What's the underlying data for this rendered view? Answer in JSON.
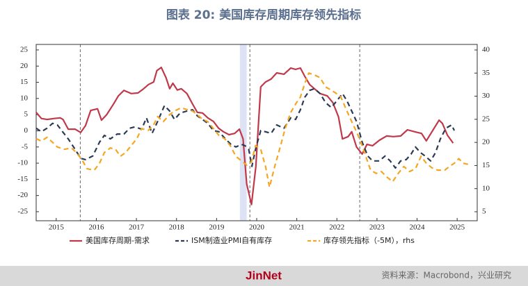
{
  "chart_data": {
    "type": "line",
    "title": "图表 20: 美国库存周期库存领先指标",
    "xlim": [
      2015,
      2026
    ],
    "xticks": [
      {
        "value": 2015.5,
        "label": "2015"
      },
      {
        "value": 2016.5,
        "label": "2016"
      },
      {
        "value": 2017.5,
        "label": "2017"
      },
      {
        "value": 2018.5,
        "label": "2018"
      },
      {
        "value": 2019.5,
        "label": "2019"
      },
      {
        "value": 2020.5,
        "label": "2020"
      },
      {
        "value": 2021.5,
        "label": "2021"
      },
      {
        "value": 2022.5,
        "label": "2022"
      },
      {
        "value": 2023.5,
        "label": "2023"
      },
      {
        "value": 2024.5,
        "label": "2024"
      },
      {
        "value": 2025.5,
        "label": "2025"
      }
    ],
    "ylim": [
      -27.8,
      26.7
    ],
    "yticks": [
      -25,
      -20,
      -15,
      -10,
      -5,
      0,
      5,
      10,
      15,
      20,
      25
    ],
    "y2lim": [
      3.05,
      41.2
    ],
    "y2ticks": [
      5,
      10,
      15,
      20,
      25,
      30,
      35,
      40
    ],
    "shaded_x": [
      2020.08,
      2020.25
    ],
    "reference_x": [
      2016.1,
      2020.33,
      2023.07
    ],
    "series": [
      {
        "name": "美国库存周期-需求",
        "color": "#c0394b",
        "dash": "none",
        "x": [
          2015.0,
          2015.13,
          2015.27,
          2015.45,
          2015.6,
          2015.67,
          2015.8,
          2015.97,
          2016.11,
          2016.23,
          2016.36,
          2016.53,
          2016.63,
          2016.76,
          2016.93,
          2017.05,
          2017.19,
          2017.37,
          2017.54,
          2017.66,
          2017.8,
          2017.93,
          2018.01,
          2018.12,
          2018.24,
          2018.33,
          2018.41,
          2018.52,
          2018.62,
          2018.76,
          2018.9,
          2019.02,
          2019.15,
          2019.28,
          2019.42,
          2019.55,
          2019.67,
          2019.81,
          2019.95,
          2020.07,
          2020.16,
          2020.25,
          2020.37,
          2020.48,
          2020.6,
          2020.72,
          2020.86,
          2021.0,
          2021.18,
          2021.35,
          2021.47,
          2021.59,
          2021.7,
          2021.82,
          2021.94,
          2022.08,
          2022.26,
          2022.4,
          2022.54,
          2022.64,
          2022.78,
          2022.87,
          2022.99,
          2023.13,
          2023.25,
          2023.39,
          2023.56,
          2023.74,
          2023.91,
          2024.09,
          2024.26,
          2024.44,
          2024.61,
          2024.73,
          2024.87,
          2025.05,
          2025.13,
          2025.26,
          2025.4
        ],
        "values": [
          5.7,
          3.8,
          3.5,
          3.8,
          4,
          3.5,
          0.5,
          0.5,
          -0.5,
          1.6,
          6.3,
          6.8,
          3.3,
          5,
          8.3,
          10.8,
          12.5,
          11.5,
          11.7,
          12.8,
          14.3,
          15.1,
          18.6,
          19.6,
          16.4,
          13,
          14.7,
          12.6,
          13,
          11.5,
          8.3,
          5.7,
          5.5,
          4,
          2.9,
          0.8,
          -0.3,
          -1.2,
          -0.8,
          0.5,
          -2.5,
          -16.4,
          -22.8,
          -11,
          13.6,
          15.1,
          16,
          17.9,
          17.5,
          19.4,
          19,
          19.4,
          16.8,
          14.3,
          13,
          11.5,
          10.8,
          8.7,
          4.3,
          -2.5,
          -1.8,
          -0.3,
          -5,
          -7.2,
          -4.2,
          -4.6,
          -2.9,
          -1.6,
          -1.8,
          -1.6,
          0.3,
          -0.3,
          -0.8,
          -3.1,
          -0.3,
          3.3,
          2.3,
          -1.4,
          -3.8
        ]
      },
      {
        "name": "ISM制造业PMI自有库存",
        "color": "#2b3a55",
        "dash": "7 5",
        "x": [
          2015.0,
          2015.13,
          2015.27,
          2015.41,
          2015.53,
          2015.66,
          2015.8,
          2015.97,
          2016.11,
          2016.23,
          2016.41,
          2016.58,
          2016.7,
          2016.85,
          2017.02,
          2017.19,
          2017.33,
          2017.46,
          2017.63,
          2017.75,
          2017.89,
          2018.03,
          2018.2,
          2018.33,
          2018.45,
          2018.59,
          2018.76,
          2018.9,
          2019.02,
          2019.15,
          2019.28,
          2019.42,
          2019.56,
          2019.72,
          2019.86,
          2019.98,
          2020.12,
          2020.21,
          2020.3,
          2020.38,
          2020.47,
          2020.6,
          2020.72,
          2020.86,
          2021.0,
          2021.18,
          2021.35,
          2021.47,
          2021.59,
          2021.7,
          2021.82,
          2021.94,
          2022.08,
          2022.22,
          2022.36,
          2022.5,
          2022.64,
          2022.75,
          2022.87,
          2022.99,
          2023.13,
          2023.27,
          2023.39,
          2023.56,
          2023.7,
          2023.83,
          2023.96,
          2024.09,
          2024.23,
          2024.35,
          2024.46,
          2024.58,
          2024.7,
          2024.84,
          2024.96,
          2025.08,
          2025.22,
          2025.36,
          2025.43
        ],
        "values": [
          0.8,
          -0.3,
          0.8,
          2.3,
          1.8,
          -0.3,
          -2.5,
          -5.7,
          -8.5,
          -8.9,
          -7.8,
          -3.5,
          -1.4,
          -2.5,
          -1,
          -1,
          0.8,
          1.2,
          0.5,
          4,
          -0.8,
          2.9,
          7.8,
          6.1,
          3.5,
          5.5,
          6.1,
          6.5,
          4.6,
          3.5,
          2.3,
          0.1,
          -0.3,
          -2.5,
          -4.2,
          -5,
          -4.2,
          -4.6,
          -5.7,
          -11,
          -5.7,
          0.1,
          -0.3,
          -0.8,
          1.8,
          0.8,
          4,
          3.5,
          6.5,
          10.4,
          12.5,
          13,
          11.5,
          8.7,
          7.2,
          9.3,
          11.5,
          9.3,
          6.1,
          2.9,
          -3.5,
          -7.8,
          -9.3,
          -9.3,
          -7.8,
          -9.3,
          -11.5,
          -9.3,
          -8.9,
          -7.2,
          -5,
          -6.7,
          -7.8,
          -9.3,
          -6.7,
          -2.5,
          0.8,
          1.8,
          0.1
        ]
      },
      {
        "name": "库存领先指标（-5M），rhs",
        "color": "#f5a623",
        "dash": "7 5",
        "axis": "y2",
        "x": [
          2015.0,
          2015.13,
          2015.27,
          2015.41,
          2015.53,
          2015.71,
          2015.88,
          2016.0,
          2016.14,
          2016.27,
          2016.45,
          2016.58,
          2016.7,
          2016.85,
          2016.98,
          2017.1,
          2017.23,
          2017.37,
          2017.51,
          2017.63,
          2017.8,
          2017.93,
          2018.03,
          2018.17,
          2018.33,
          2018.45,
          2018.62,
          2018.76,
          2018.9,
          2019.02,
          2019.15,
          2019.28,
          2019.42,
          2019.56,
          2019.7,
          2019.84,
          2019.98,
          2020.12,
          2020.25,
          2020.37,
          2020.47,
          2020.6,
          2020.72,
          2020.82,
          2020.95,
          2021.07,
          2021.21,
          2021.35,
          2021.47,
          2021.59,
          2021.7,
          2021.8,
          2021.94,
          2022.08,
          2022.22,
          2022.36,
          2022.5,
          2022.6,
          2022.75,
          2022.87,
          2022.99,
          2023.1,
          2023.22,
          2023.34,
          2023.48,
          2023.61,
          2023.75,
          2023.89,
          2024.03,
          2024.17,
          2024.31,
          2024.46,
          2024.6,
          2024.73,
          2024.87,
          2025.01,
          2025.19,
          2025.31,
          2025.43,
          2025.54,
          2025.64,
          2025.75,
          2025.84
        ],
        "values": [
          20.8,
          20.3,
          21.1,
          20,
          19,
          18.5,
          18.8,
          17.8,
          16.3,
          14.3,
          14,
          15.5,
          17.8,
          18.8,
          18.5,
          17,
          17.8,
          19.3,
          20.8,
          23,
          22.6,
          23.8,
          25.6,
          24.5,
          26,
          26.8,
          27.5,
          27.1,
          26.8,
          26,
          25,
          24.5,
          23,
          21.5,
          20.8,
          19.3,
          17,
          16,
          15.1,
          15.8,
          19.3,
          18.5,
          14.8,
          10.3,
          14.8,
          18.5,
          23,
          26.5,
          28.3,
          29.8,
          32.8,
          35,
          34.6,
          34,
          32,
          31.3,
          30.5,
          29.8,
          26.8,
          24.5,
          22.3,
          20,
          17,
          14,
          13.3,
          13.7,
          12.5,
          11.5,
          13.3,
          14.8,
          13.7,
          14.3,
          17,
          15.5,
          14.5,
          14,
          14,
          14.8,
          15.5,
          16.5,
          15.5,
          15.3,
          15.1
        ]
      }
    ]
  },
  "footer": {
    "logo": "JinNet",
    "source": "资料来源：Macrobond，兴业研究"
  }
}
